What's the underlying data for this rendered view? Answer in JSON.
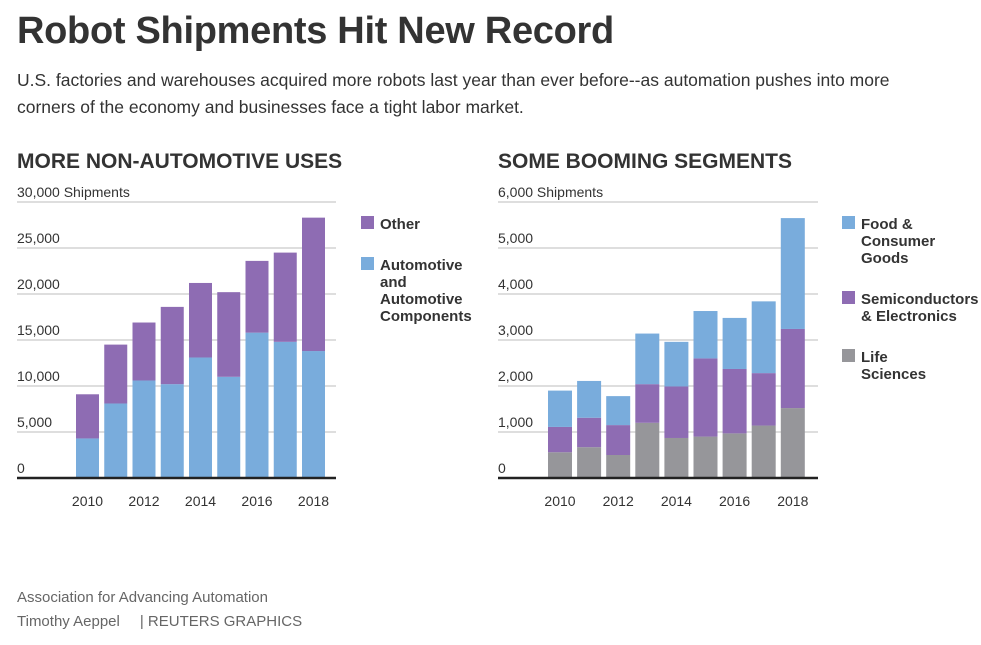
{
  "header": {
    "title": "Robot Shipments Hit New Record",
    "subtitle": "U.S. factories and warehouses acquired more robots last year than ever before--as automation pushes into more corners of the economy and businesses face a tight labor market."
  },
  "footer": {
    "source": "Association for Advancing Automation",
    "author": "Timothy Aeppel",
    "organization": "| REUTERS GRAPHICS"
  },
  "chart_data": [
    {
      "type": "bar",
      "stacked": true,
      "title": "MORE NON-AUTOMOTIVE USES",
      "ylabel": "30,000 Shipments",
      "ylim": [
        0,
        30000
      ],
      "yticks": [
        0,
        5000,
        10000,
        15000,
        20000,
        25000
      ],
      "ytick_labels": [
        "0",
        "5,000",
        "10,000",
        "15,000",
        "20,000",
        "25,000"
      ],
      "categories": [
        "2010",
        "2011",
        "2012",
        "2013",
        "2014",
        "2015",
        "2016",
        "2017",
        "2018"
      ],
      "xtick_labels": [
        "2010",
        "",
        "2012",
        "",
        "2014",
        "",
        "2016",
        "",
        "2018"
      ],
      "series": [
        {
          "name": "Automotive and Automotive Components",
          "legend_lines": [
            "Automotive",
            "and",
            "Automotive",
            "Components"
          ],
          "color": "#79acdc",
          "values": [
            4300,
            8100,
            10600,
            10200,
            13100,
            11000,
            15800,
            14800,
            13800
          ]
        },
        {
          "name": "Other",
          "legend_lines": [
            "Other"
          ],
          "color": "#8e6cb3",
          "values": [
            4800,
            6400,
            6300,
            8400,
            8100,
            9200,
            7800,
            9700,
            14500
          ]
        }
      ],
      "legend_order": [
        1,
        0
      ]
    },
    {
      "type": "bar",
      "stacked": true,
      "title": "SOME BOOMING SEGMENTS",
      "ylabel": "6,000 Shipments",
      "ylim": [
        0,
        6000
      ],
      "yticks": [
        0,
        1000,
        2000,
        3000,
        4000,
        5000
      ],
      "ytick_labels": [
        "0",
        "1,000",
        "2,000",
        "3,000",
        "4,000",
        "5,000"
      ],
      "categories": [
        "2010",
        "2011",
        "2012",
        "2013",
        "2014",
        "2015",
        "2016",
        "2017",
        "2018"
      ],
      "xtick_labels": [
        "2010",
        "",
        "2012",
        "",
        "2014",
        "",
        "2016",
        "",
        "2018"
      ],
      "series": [
        {
          "name": "Life Sciences",
          "legend_lines": [
            "Life",
            "Sciences"
          ],
          "color": "#96969a",
          "values": [
            560,
            670,
            500,
            1200,
            870,
            900,
            970,
            1140,
            1520
          ]
        },
        {
          "name": "Semiconductors & Electronics",
          "legend_lines": [
            "Semiconductors",
            "& Electronics"
          ],
          "color": "#8e6cb3",
          "values": [
            550,
            640,
            650,
            840,
            1120,
            1700,
            1400,
            1140,
            1720
          ]
        },
        {
          "name": "Food & Consumer Goods",
          "legend_lines": [
            "Food &",
            "Consumer",
            "Goods"
          ],
          "color": "#79acdc",
          "values": [
            790,
            800,
            630,
            1100,
            970,
            1030,
            1110,
            1560,
            2410
          ]
        }
      ],
      "legend_order": [
        2,
        1,
        0
      ]
    }
  ]
}
